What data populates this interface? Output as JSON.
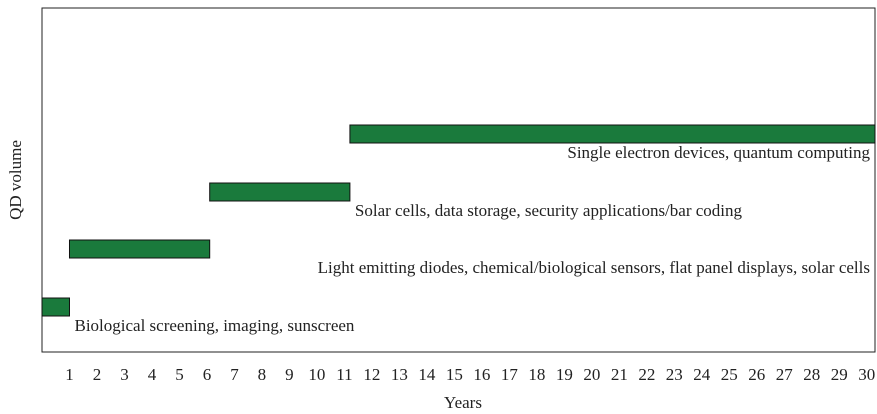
{
  "chart_data": {
    "type": "range_bar",
    "x_label": "Years",
    "y_label": "QD volume",
    "xlim": [
      0,
      30.3
    ],
    "xticks": [
      1,
      2,
      3,
      4,
      5,
      6,
      7,
      8,
      9,
      10,
      11,
      12,
      13,
      14,
      15,
      16,
      17,
      18,
      19,
      20,
      21,
      22,
      23,
      24,
      25,
      26,
      27,
      28,
      29,
      30
    ],
    "color": "#1a7a3c",
    "bars": [
      {
        "label": "Biological screening, imaging, sunscreen",
        "start": 0,
        "end": 1
      },
      {
        "label": "Light emitting diodes, chemical/biological sensors, flat panel displays, solar cells",
        "start": 1,
        "end": 6.1
      },
      {
        "label": "Solar cells, data storage, security applications/bar coding",
        "start": 6.1,
        "end": 11.2
      },
      {
        "label": "Single electron devices, quantum computing",
        "start": 11.2,
        "end": 30.3
      }
    ]
  }
}
